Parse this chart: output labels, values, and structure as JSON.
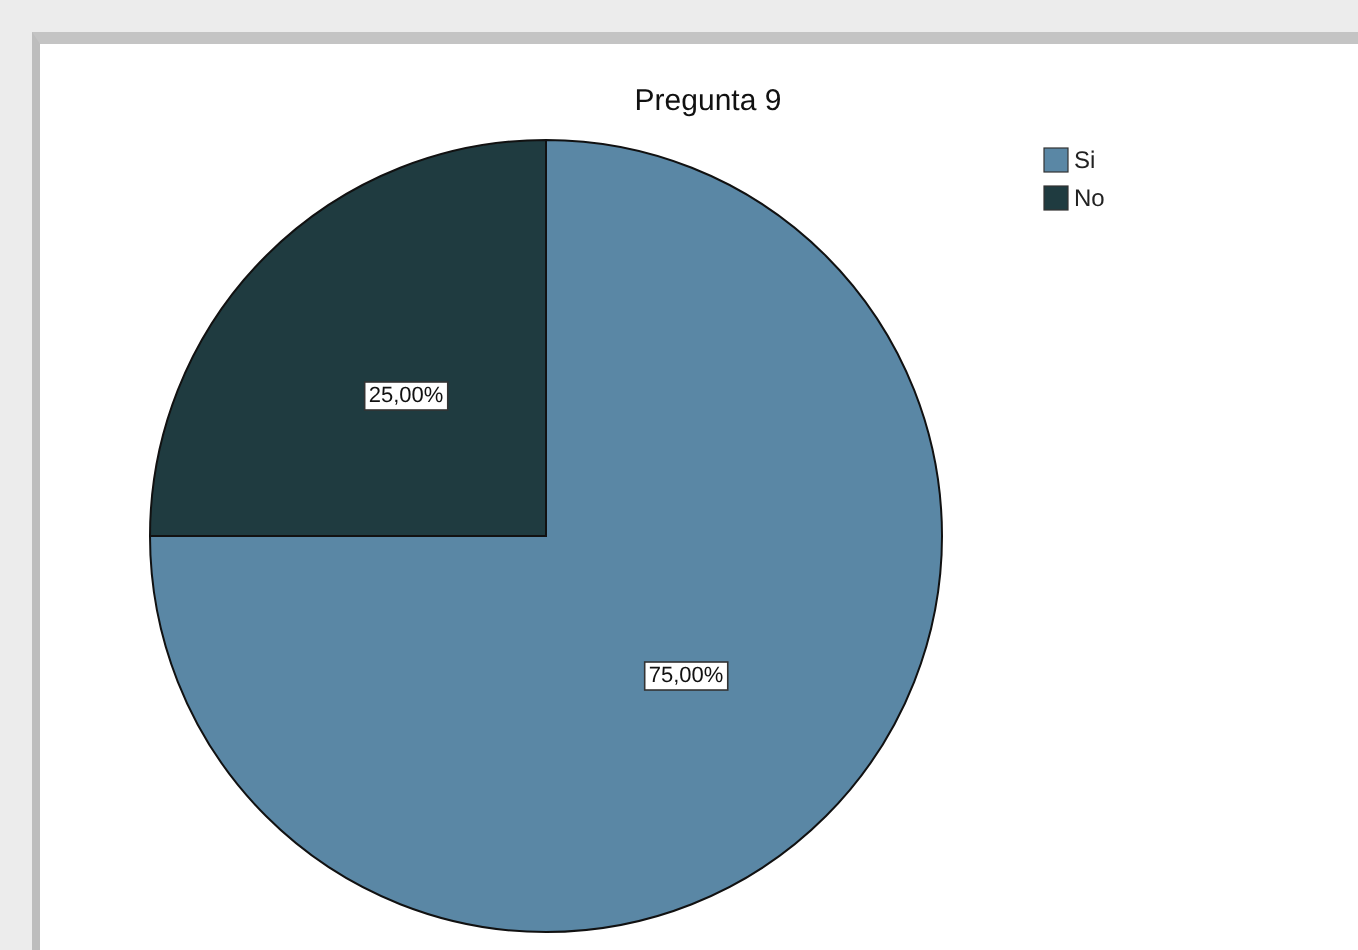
{
  "chart_data": {
    "type": "pie",
    "title": "Pregunta 9",
    "categories": [
      "Si",
      "No"
    ],
    "values": [
      75,
      25
    ],
    "colors": [
      "#5a87a5",
      "#1f3b40"
    ],
    "value_labels": [
      "75,00%",
      "25,00%"
    ],
    "legend": "top right"
  }
}
